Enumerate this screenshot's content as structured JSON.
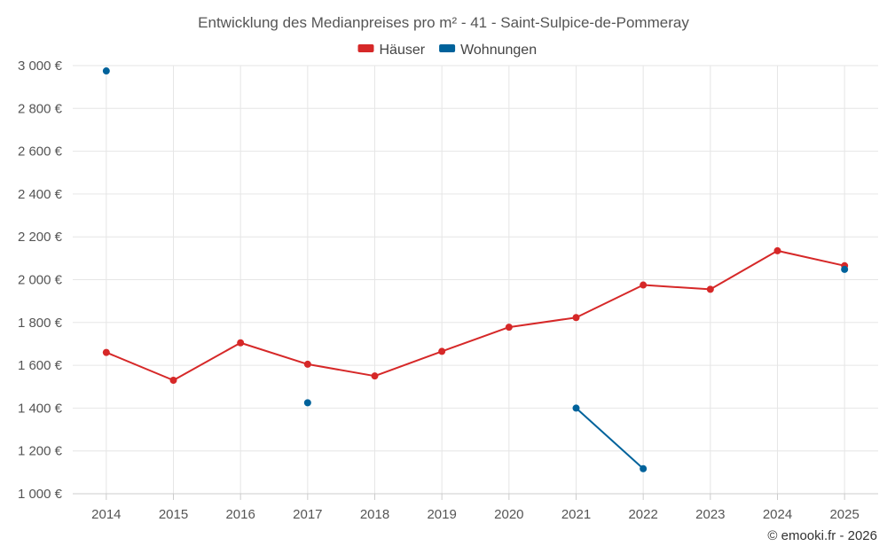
{
  "chart_data": {
    "type": "line",
    "title": "Entwicklung des Medianpreises pro m² - 41 - Saint-Sulpice-de-Pommeray",
    "categories": [
      "2014",
      "2015",
      "2016",
      "2017",
      "2018",
      "2019",
      "2020",
      "2021",
      "2022",
      "2023",
      "2024",
      "2025"
    ],
    "ylim": [
      1000,
      3000
    ],
    "yticks": [
      1000,
      1200,
      1400,
      1600,
      1800,
      2000,
      2200,
      2400,
      2600,
      2800,
      3000
    ],
    "ytick_labels": [
      "1 000 €",
      "1 200 €",
      "1 400 €",
      "1 600 €",
      "1 800 €",
      "2 000 €",
      "2 200 €",
      "2 400 €",
      "2 600 €",
      "2 800 €",
      "3 000 €"
    ],
    "grid": true,
    "legend_position": "top-center",
    "series": [
      {
        "name": "Häuser",
        "color": "#d62828",
        "values": [
          1660,
          1530,
          1705,
          1605,
          1550,
          1665,
          1778,
          1823,
          1975,
          1955,
          2135,
          2065
        ]
      },
      {
        "name": "Wohnungen",
        "color": "#00629b",
        "values": [
          2975,
          null,
          null,
          1425,
          null,
          null,
          null,
          1400,
          1117,
          null,
          null,
          2048
        ]
      }
    ]
  },
  "credit": "© emooki.fr - 2026"
}
